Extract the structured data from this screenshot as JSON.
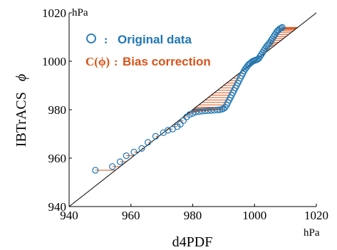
{
  "chart_data": {
    "type": "scatter",
    "xlabel": "d4PDF",
    "ylabel": "IBTrACS",
    "ylabel_symbol": "ϕ",
    "x_unit": "hPa",
    "y_unit": "hPa",
    "xlim": [
      940,
      1020
    ],
    "ylim": [
      940,
      1020
    ],
    "x_ticks": [
      940,
      960,
      980,
      1000,
      1020
    ],
    "y_ticks": [
      940,
      960,
      980,
      1000,
      1020
    ],
    "x_tick_labels": [
      "940",
      "960",
      "980",
      "1000",
      "1020"
    ],
    "y_tick_labels": [
      "940",
      "960",
      "980",
      "1000",
      "1020"
    ],
    "reference_line": "y = x",
    "legend": {
      "placement": "top-left",
      "entries": [
        {
          "marker": "○",
          "sep": ":",
          "text": "Original data",
          "color": "#1f77b4"
        },
        {
          "marker": "C(ϕ)",
          "sep": ":",
          "text": "Bias correction",
          "color": "#d95319"
        }
      ]
    },
    "colors": {
      "original": "#1f77b4",
      "correction": "#d95319",
      "reference": "#000000"
    },
    "series": [
      {
        "name": "Original data",
        "points": [
          [
            948.5,
            955
          ],
          [
            954,
            956.5
          ],
          [
            956.5,
            958.5
          ],
          [
            958.5,
            961
          ],
          [
            961,
            962.5
          ],
          [
            963.5,
            964
          ],
          [
            965.5,
            966.5
          ],
          [
            968,
            969
          ],
          [
            970.5,
            970.5
          ],
          [
            972,
            971.5
          ],
          [
            973.5,
            972
          ],
          [
            975,
            973
          ],
          [
            976,
            974
          ],
          [
            977,
            975.5
          ],
          [
            978,
            977
          ],
          [
            979,
            978
          ],
          [
            980,
            978.5
          ],
          [
            981,
            979
          ],
          [
            982,
            979.2
          ],
          [
            983,
            979.4
          ],
          [
            984,
            979.5
          ],
          [
            985,
            979.6
          ],
          [
            986,
            979.7
          ],
          [
            987,
            979.8
          ],
          [
            988,
            979.9
          ],
          [
            988.8,
            980
          ],
          [
            989.5,
            980.2
          ],
          [
            990,
            980.5
          ],
          [
            990.5,
            981
          ],
          [
            991,
            982
          ],
          [
            991.4,
            983
          ],
          [
            991.8,
            984
          ],
          [
            992.2,
            985
          ],
          [
            992.6,
            986
          ],
          [
            993,
            987
          ],
          [
            993.4,
            988
          ],
          [
            993.8,
            989
          ],
          [
            994.2,
            990
          ],
          [
            994.6,
            991
          ],
          [
            995,
            992
          ],
          [
            995.4,
            993
          ],
          [
            995.8,
            994
          ],
          [
            996.2,
            995
          ],
          [
            996.6,
            996
          ],
          [
            997,
            996.8
          ],
          [
            997.4,
            997.5
          ],
          [
            997.8,
            998.2
          ],
          [
            998.2,
            998.8
          ],
          [
            998.6,
            999.2
          ],
          [
            999,
            999.6
          ],
          [
            999.4,
            1000
          ],
          [
            999.8,
            1000.2
          ],
          [
            1000.2,
            1000.4
          ],
          [
            1000.6,
            1000.6
          ],
          [
            1001,
            1000.8
          ],
          [
            1001.4,
            1001.2
          ],
          [
            1001.8,
            1002
          ],
          [
            1002.2,
            1002.8
          ],
          [
            1002.6,
            1003.6
          ],
          [
            1003,
            1004.4
          ],
          [
            1003.4,
            1005.2
          ],
          [
            1003.8,
            1006
          ],
          [
            1004.2,
            1006.6
          ],
          [
            1004.6,
            1007.2
          ],
          [
            1005,
            1007.8
          ],
          [
            1005.4,
            1008.6
          ],
          [
            1005.8,
            1009.4
          ],
          [
            1006.2,
            1010.2
          ],
          [
            1006.6,
            1011
          ],
          [
            1007,
            1011.8
          ],
          [
            1007.4,
            1012.5
          ],
          [
            1007.8,
            1013
          ],
          [
            1008.2,
            1013.4
          ],
          [
            1008.6,
            1013.7
          ],
          [
            1009,
            1014
          ]
        ]
      }
    ]
  }
}
